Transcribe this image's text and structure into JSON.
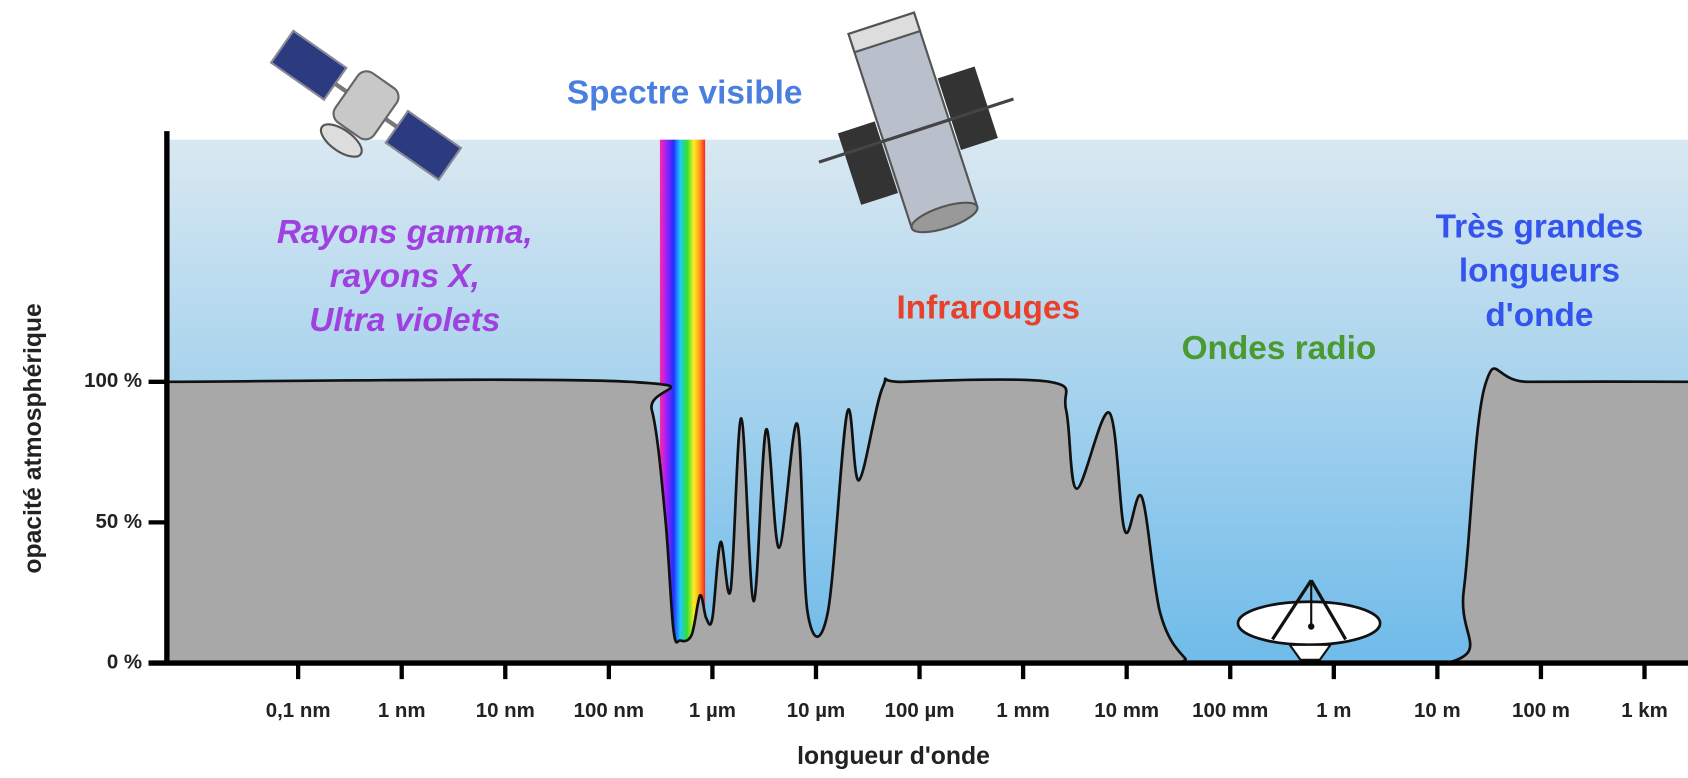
{
  "chart_data": {
    "type": "area",
    "x_label": "longueur d'onde",
    "y_label": "opacité atmosphérique",
    "x": [
      5.4e-12,
      1.6e-07,
      2.6e-07,
      3.5e-07,
      4.2e-07,
      4.9e-07,
      6.3e-07,
      7.6e-07,
      8.7e-07,
      1e-06,
      1.2e-06,
      1.5e-06,
      1.9e-06,
      2.5e-06,
      3.3e-06,
      4.4e-06,
      6.6e-06,
      8.3e-06,
      1.3e-05,
      2e-05,
      2.6e-05,
      4.4e-05,
      7e-05,
      0.0018,
      0.0026,
      0.0033,
      0.0068,
      0.0096,
      0.014,
      0.021,
      0.036,
      0.058,
      12.6,
      18,
      29,
      76,
      2630
    ],
    "values": [
      100,
      100,
      90,
      52,
      12,
      8,
      10,
      24,
      16,
      16,
      43,
      26,
      87,
      22,
      83,
      41,
      85,
      18,
      18,
      89,
      65,
      98,
      100,
      100,
      90,
      62,
      89,
      47,
      59,
      18,
      2,
      0,
      0,
      26,
      99,
      100,
      100
    ],
    "color": "#a8a8a8",
    "x_log": true,
    "xlim": [
      5.4e-12,
      2630
    ],
    "ylim": [
      0,
      188
    ],
    "xticks": [
      {
        "value": 1e-10,
        "label": "0,1 nm"
      },
      {
        "value": 1e-09,
        "label": "1 nm"
      },
      {
        "value": 1e-08,
        "label": "10 nm"
      },
      {
        "value": 1e-07,
        "label": "100 nm"
      },
      {
        "value": 1e-06,
        "label": "1 µm"
      },
      {
        "value": 1e-05,
        "label": "10 µm"
      },
      {
        "value": 0.0001,
        "label": "100 µm"
      },
      {
        "value": 0.001,
        "label": "1 mm"
      },
      {
        "value": 0.01,
        "label": "10 mm"
      },
      {
        "value": 0.1,
        "label": "100 mm"
      },
      {
        "value": 1,
        "label": "1 m"
      },
      {
        "value": 10,
        "label": "10 m"
      },
      {
        "value": 100,
        "label": "100 m"
      },
      {
        "value": 1000,
        "label": "1 km"
      }
    ],
    "yticks": [
      {
        "value": 0,
        "label": "0 %"
      },
      {
        "value": 50,
        "label": "50 %"
      },
      {
        "value": 100,
        "label": "100 %"
      }
    ],
    "annotations": [
      {
        "lines": [
          "Rayons gamma,",
          "rayons X,",
          "Ultra violets"
        ],
        "color": "#a040e0"
      },
      {
        "lines": [
          "Spectre visible"
        ],
        "color": "#4a7fe0"
      },
      {
        "lines": [
          "Infrarouges"
        ],
        "color": "#e8402a"
      },
      {
        "lines": [
          "Ondes radio"
        ],
        "color": "#4a9a30"
      },
      {
        "lines": [
          "Très grandes",
          "longueurs",
          "d'onde"
        ],
        "color": "#3355ee"
      }
    ]
  }
}
